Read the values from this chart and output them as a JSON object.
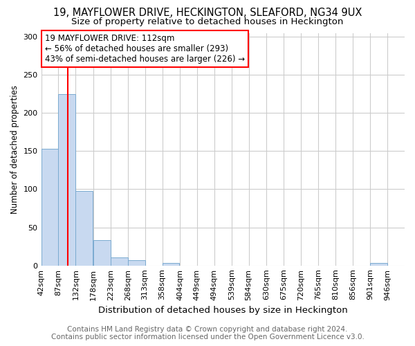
{
  "title1": "19, MAYFLOWER DRIVE, HECKINGTON, SLEAFORD, NG34 9UX",
  "title2": "Size of property relative to detached houses in Heckington",
  "xlabel": "Distribution of detached houses by size in Heckington",
  "ylabel": "Number of detached properties",
  "categories": [
    "42sqm",
    "87sqm",
    "132sqm",
    "178sqm",
    "223sqm",
    "268sqm",
    "313sqm",
    "358sqm",
    "404sqm",
    "449sqm",
    "494sqm",
    "539sqm",
    "584sqm",
    "630sqm",
    "675sqm",
    "720sqm",
    "765sqm",
    "810sqm",
    "856sqm",
    "901sqm",
    "946sqm"
  ],
  "values": [
    153,
    225,
    98,
    33,
    11,
    7,
    0,
    3,
    0,
    0,
    0,
    0,
    0,
    0,
    0,
    0,
    0,
    0,
    0,
    3,
    0
  ],
  "bar_color": "#c8d9f0",
  "bar_edge_color": "#7aaad0",
  "vline_x": 112,
  "vline_color": "red",
  "annotation_line1": "19 MAYFLOWER DRIVE: 112sqm",
  "annotation_line2": "← 56% of detached houses are smaller (293)",
  "annotation_line3": "43% of semi-detached houses are larger (226) →",
  "annotation_box_color": "white",
  "annotation_box_edge_color": "red",
  "ylim": [
    0,
    305
  ],
  "yticks": [
    0,
    50,
    100,
    150,
    200,
    250,
    300
  ],
  "footer1": "Contains HM Land Registry data © Crown copyright and database right 2024.",
  "footer2": "Contains public sector information licensed under the Open Government Licence v3.0.",
  "bg_color": "white",
  "grid_color": "#cccccc",
  "title1_fontsize": 10.5,
  "title2_fontsize": 9.5,
  "xlabel_fontsize": 9.5,
  "ylabel_fontsize": 8.5,
  "tick_fontsize": 8,
  "annotation_fontsize": 8.5,
  "footer_fontsize": 7.5,
  "bin_width": 45,
  "bin_starts": [
    42,
    87,
    132,
    178,
    223,
    268,
    313,
    358,
    404,
    449,
    494,
    539,
    584,
    630,
    675,
    720,
    765,
    810,
    856,
    901,
    946
  ],
  "xlim_left": 42,
  "xlim_right": 991
}
